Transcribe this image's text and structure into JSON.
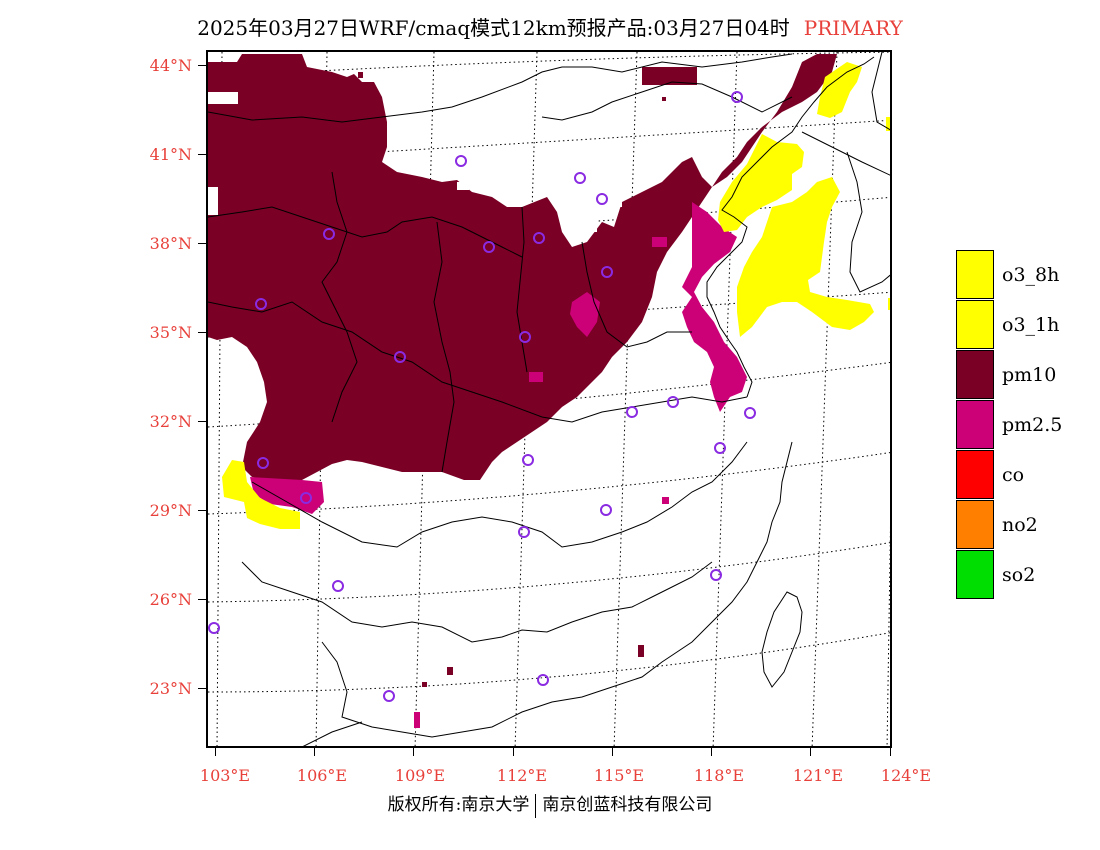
{
  "title": {
    "main": "2025年03月27日WRF/cmaq模式12km预报产品:03月27日04时",
    "tag": "PRIMARY"
  },
  "colors": {
    "title_tag": "#e8403a",
    "axis_labels": "#e8403a",
    "o3_8h": "#ffff00",
    "o3_1h": "#ffff00",
    "pm10": "#7a0025",
    "pm2_5": "#cc0077",
    "co": "#ff0000",
    "no2": "#ff8000",
    "so2": "#00dd00",
    "station_marker": "#8a2be2"
  },
  "axes": {
    "lat_labels": [
      "44°N",
      "41°N",
      "38°N",
      "35°N",
      "32°N",
      "29°N",
      "26°N",
      "23°N"
    ],
    "lon_labels": [
      "103°E",
      "106°E",
      "109°E",
      "112°E",
      "115°E",
      "118°E",
      "121°E",
      "124°E"
    ]
  },
  "legend": {
    "items": [
      {
        "key": "o3_8h",
        "label": "o3_8h",
        "color": "#ffff00"
      },
      {
        "key": "o3_1h",
        "label": "o3_1h",
        "color": "#ffff00"
      },
      {
        "key": "pm10",
        "label": "pm10",
        "color": "#7a0025"
      },
      {
        "key": "pm2_5",
        "label": "pm2.5",
        "color": "#cc0077"
      },
      {
        "key": "co",
        "label": "co",
        "color": "#ff0000"
      },
      {
        "key": "no2",
        "label": "no2",
        "color": "#ff8000"
      },
      {
        "key": "so2",
        "label": "so2",
        "color": "#00dd00"
      }
    ]
  },
  "footer": {
    "left": "版权所有:南京大学",
    "right": "南京创蓝科技有限公司"
  }
}
